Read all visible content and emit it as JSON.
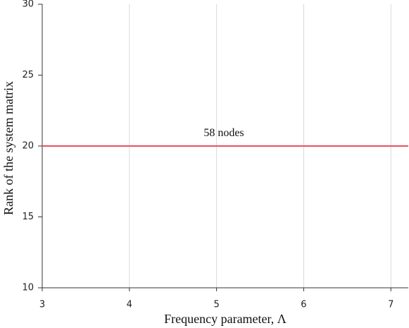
{
  "chart_data": {
    "type": "line",
    "x_label": "Frequency parameter, Λ",
    "y_label": "Rank of  the system matrix",
    "x": [
      3,
      7.2
    ],
    "series": [
      {
        "name": "58 nodes",
        "color": "#e8525e",
        "values": [
          20,
          20
        ]
      }
    ],
    "xlim": [
      3,
      7.2
    ],
    "xticks": [
      3,
      4,
      5,
      6,
      7
    ],
    "ylim": [
      10,
      30
    ],
    "yticks": [
      10,
      15,
      20,
      25,
      30
    ],
    "grid": true
  }
}
